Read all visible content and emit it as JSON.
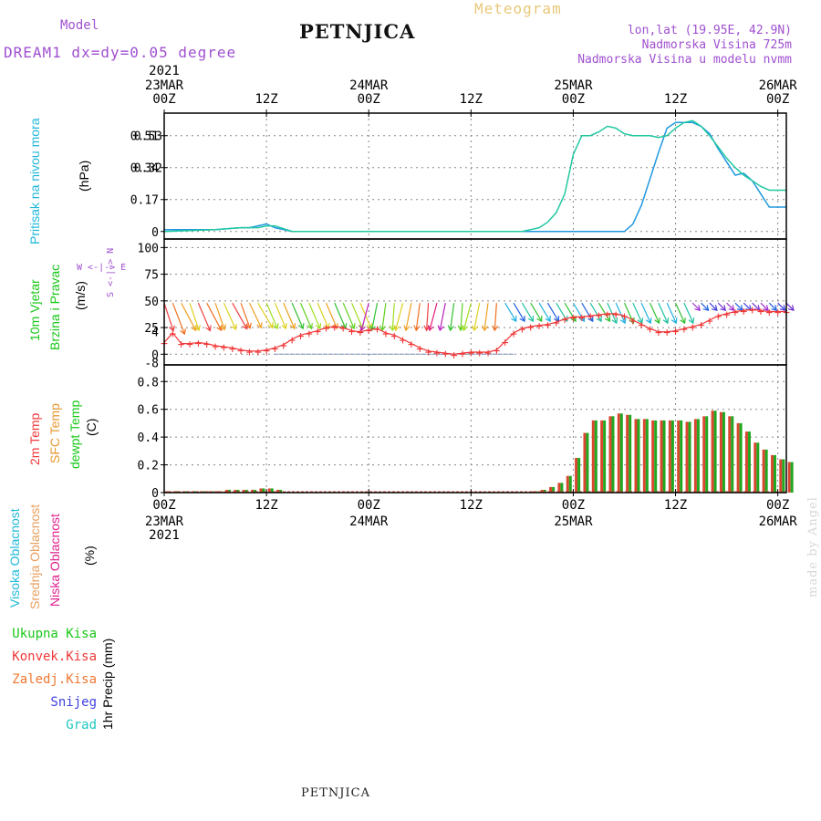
{
  "header": {
    "model_label": "Model",
    "model_info": "DREAM1 dx=dy=0.05 degree",
    "station": "PETNJICA",
    "meteogram": "Meteogram",
    "lonlat": "lon,lat (19.95E, 42.9N)",
    "altitude": "Nadmorska Visina 725m",
    "altitude_model": "Nadmorska Visina u modelu nvmm"
  },
  "footer": {
    "station": "PETNJICA",
    "made_by": "made by Angel"
  },
  "time_axis": {
    "top_year": "2021",
    "bottom_year": "2021",
    "ticks": [
      {
        "hours": 0,
        "top": "00Z",
        "date": "23MAR"
      },
      {
        "hours": 12,
        "top": "12Z",
        "date": ""
      },
      {
        "hours": 24,
        "top": "00Z",
        "date": "24MAR"
      },
      {
        "hours": 36,
        "top": "12Z",
        "date": ""
      },
      {
        "hours": 48,
        "top": "00Z",
        "date": "25MAR"
      },
      {
        "hours": 60,
        "top": "12Z",
        "date": ""
      },
      {
        "hours": 72,
        "top": "00Z",
        "date": "26MAR"
      }
    ]
  },
  "panel_labels": {
    "pressure": {
      "name": "Pritisak na nivou mora",
      "unit": "(hPa)"
    },
    "wind": {
      "line1": "10m Vjetar",
      "line2": "Brzina i Pravac",
      "unit": "(m/s)",
      "compass": "W <-|-> E",
      "compass_ns": "S <-|-> N"
    },
    "temp": {
      "t2m": "2m Temp",
      "sfc": "SFC Temp",
      "dew": "dewpt Temp",
      "unit": "(C)"
    },
    "cloud": {
      "high": "Visoka Oblacnost",
      "mid": "Srednja Oblacnost",
      "low": "Niska Oblacnost",
      "unit": "(%)"
    },
    "precip": {
      "total": "Ukupna Kisa",
      "conv": "Konvek.Kisa",
      "frz": "Zaledj.Kisa",
      "snow": "Snijeg",
      "grad": "Grad",
      "unit": "1hr Precip (mm)"
    }
  },
  "colors": {
    "purple": "#a050d0",
    "cyan": "#20b8d8",
    "green": "#18c818",
    "orange": "#e89830",
    "magenta": "#e0208c",
    "red": "#f03838",
    "teal": "#20c8a0",
    "blue": "#2090e0",
    "bar_red": "#d84830",
    "bar_green": "#20a820"
  },
  "chart_data": [
    {
      "type": "line",
      "title": "",
      "ylabel": "(hPa)",
      "yticks": [
        "0",
        "0.17",
        "0.34",
        "0.51"
      ],
      "ytick_overlap": [
        "",
        "",
        "0.32",
        "0.53"
      ],
      "ylim": [
        -0.04,
        0.63
      ],
      "xlim": [
        0,
        73
      ],
      "grid": true,
      "series": [
        {
          "color": "#2098e0",
          "x": [
            0,
            6,
            9,
            10,
            11,
            12,
            13,
            15,
            20,
            30,
            40,
            50,
            52,
            53,
            54,
            55,
            56,
            57,
            58,
            59,
            60,
            61,
            62,
            63,
            64,
            65,
            66,
            67,
            68,
            69,
            70,
            71,
            72,
            73
          ],
          "values": [
            0.01,
            0.01,
            0.02,
            0.02,
            0.03,
            0.04,
            0.02,
            0.0,
            0.0,
            0.0,
            0.0,
            0.0,
            0.0,
            0.0,
            0.0,
            0.04,
            0.14,
            0.28,
            0.42,
            0.55,
            0.58,
            0.58,
            0.58,
            0.56,
            0.52,
            0.44,
            0.37,
            0.3,
            0.31,
            0.27,
            0.2,
            0.13,
            0.13,
            0.13
          ]
        },
        {
          "color": "#20c8a0",
          "x": [
            0,
            6,
            9,
            11,
            12,
            13,
            15,
            20,
            30,
            40,
            41,
            42,
            43,
            44,
            45,
            46,
            47,
            48,
            49,
            50,
            51,
            52,
            53,
            54,
            55,
            56,
            57,
            58,
            59,
            60,
            61,
            62,
            63,
            64,
            65,
            66,
            67,
            68,
            69,
            70,
            71,
            72,
            73
          ],
          "values": [
            0.0,
            0.01,
            0.02,
            0.02,
            0.03,
            0.03,
            0.0,
            0.0,
            0.0,
            0.0,
            0.0,
            0.0,
            0.01,
            0.02,
            0.05,
            0.1,
            0.2,
            0.41,
            0.51,
            0.51,
            0.53,
            0.56,
            0.55,
            0.52,
            0.51,
            0.51,
            0.51,
            0.5,
            0.51,
            0.55,
            0.58,
            0.59,
            0.56,
            0.51,
            0.45,
            0.39,
            0.34,
            0.3,
            0.27,
            0.24,
            0.22,
            0.22,
            0.22
          ]
        }
      ]
    },
    {
      "type": "line",
      "title": "",
      "ylabel": "(m/s)",
      "yticks": [
        "0",
        "25",
        "50",
        "75",
        "100"
      ],
      "ytick_extra": [
        "-8",
        "4"
      ],
      "ylim": [
        -10,
        108
      ],
      "grid": true,
      "wind_speed": {
        "color": "#f03838",
        "x": [
          0,
          1,
          2,
          3,
          4,
          5,
          6,
          7,
          8,
          9,
          10,
          11,
          12,
          13,
          14,
          15,
          16,
          17,
          18,
          19,
          20,
          21,
          22,
          23,
          24,
          25,
          26,
          27,
          28,
          29,
          30,
          31,
          32,
          33,
          34,
          35,
          36,
          37,
          38,
          39,
          40,
          41,
          42,
          43,
          44,
          45,
          46,
          47,
          48,
          49,
          50,
          51,
          52,
          53,
          54,
          55,
          56,
          57,
          58,
          59,
          60,
          61,
          62,
          63,
          64,
          65,
          66,
          67,
          68,
          69,
          70,
          71,
          72,
          73
        ],
        "values": [
          11,
          20,
          10,
          10,
          11,
          10,
          8,
          7,
          6,
          4,
          3,
          3,
          4,
          6,
          9,
          14,
          18,
          20,
          22,
          25,
          26,
          25,
          22,
          21,
          23,
          24,
          20,
          18,
          14,
          10,
          6,
          3,
          2,
          1,
          0,
          1,
          2,
          2,
          2,
          4,
          12,
          20,
          24,
          26,
          27,
          28,
          30,
          33,
          35,
          35,
          36,
          37,
          38,
          38,
          36,
          32,
          28,
          24,
          21,
          21,
          22,
          24,
          26,
          28,
          32,
          36,
          38,
          40,
          41,
          42,
          41,
          40,
          40,
          40
        ]
      },
      "wind_direction_note": "arrows along 48 m/s line, one per hour"
    },
    {
      "type": "bar",
      "title": "",
      "ylabel": "(C)",
      "yticks": [
        "0",
        "0.2",
        "0.4",
        "0.6",
        "0.8"
      ],
      "ylim": [
        0,
        0.92
      ],
      "grid": true,
      "series": [
        {
          "color": "#d84830"
        },
        {
          "color": "#20a820"
        }
      ],
      "x": [
        0,
        1,
        2,
        3,
        4,
        5,
        6,
        7,
        8,
        9,
        10,
        11,
        12,
        13,
        14,
        15,
        16,
        17,
        18,
        19,
        20,
        21,
        22,
        23,
        24,
        25,
        26,
        27,
        28,
        29,
        30,
        31,
        32,
        33,
        34,
        35,
        36,
        37,
        38,
        39,
        40,
        41,
        42,
        43,
        44,
        45,
        46,
        47,
        48,
        49,
        50,
        51,
        52,
        53,
        54,
        55,
        56,
        57,
        58,
        59,
        60,
        61,
        62,
        63,
        64,
        65,
        66,
        67,
        68,
        69,
        70,
        71,
        72,
        73
      ],
      "values": [
        0.01,
        0.01,
        0.01,
        0.01,
        0.01,
        0.01,
        0.01,
        0.02,
        0.02,
        0.02,
        0.02,
        0.03,
        0.03,
        0.02,
        0.0,
        0.0,
        0.0,
        0.0,
        0.0,
        0.0,
        0.0,
        0.0,
        0.0,
        0.0,
        0.0,
        0.0,
        0.0,
        0.0,
        0.0,
        0.0,
        0.0,
        0.0,
        0.0,
        0.0,
        0.0,
        0.0,
        0.0,
        0.0,
        0.0,
        0.0,
        0.0,
        0.0,
        0.0,
        0.01,
        0.02,
        0.04,
        0.07,
        0.12,
        0.25,
        0.43,
        0.52,
        0.52,
        0.55,
        0.57,
        0.56,
        0.53,
        0.53,
        0.52,
        0.52,
        0.52,
        0.52,
        0.51,
        0.53,
        0.55,
        0.59,
        0.58,
        0.55,
        0.5,
        0.44,
        0.36,
        0.31,
        0.27,
        0.24,
        0.22
      ]
    }
  ]
}
